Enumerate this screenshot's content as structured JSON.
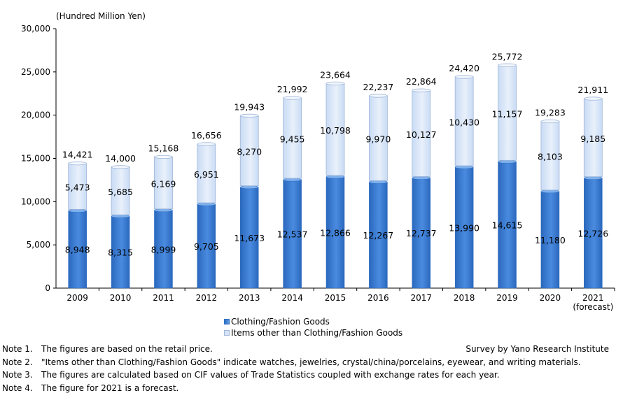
{
  "chart_data": {
    "type": "bar",
    "stacked": true,
    "unit_label": "(Hundred Million Yen)",
    "categories": [
      "2009",
      "2010",
      "2011",
      "2012",
      "2013",
      "2014",
      "2015",
      "2016",
      "2017",
      "2018",
      "2019",
      "2020",
      "2021"
    ],
    "category_sublabels": [
      "",
      "",
      "",
      "",
      "",
      "",
      "",
      "",
      "",
      "",
      "",
      "",
      "(forecast)"
    ],
    "series": [
      {
        "name": "Clothing/Fashion Goods",
        "values": [
          8948,
          8315,
          8999,
          9705,
          11673,
          12537,
          12866,
          12267,
          12737,
          13990,
          14615,
          11180,
          12726
        ]
      },
      {
        "name": "Items other than Clothing/Fashion Goods",
        "values": [
          5473,
          5685,
          6169,
          6951,
          8270,
          9455,
          10798,
          9970,
          10127,
          10430,
          11157,
          8103,
          9185
        ]
      }
    ],
    "totals": [
      14421,
      14000,
      15168,
      16656,
      19943,
      21992,
      23664,
      22237,
      22864,
      24420,
      25772,
      19283,
      21911
    ],
    "ylim": [
      0,
      30000
    ],
    "yticks": [
      "0",
      "5,000",
      "10,000",
      "15,000",
      "20,000",
      "25,000",
      "30,000"
    ],
    "colors": {
      "clothing": "#3d7fd3",
      "other": "#d6e4f7",
      "border": "#9fb6d8"
    }
  },
  "legend": {
    "clothing": "Clothing/Fashion Goods",
    "other": "Items other than Clothing/Fashion Goods"
  },
  "notes": [
    {
      "num": "Note 1.",
      "text": "The figures are based on the retail price."
    },
    {
      "num": "Note 2.",
      "text": "\"Items other than Clothing/Fashion Goods\" indicate watches, jewelries, crystal/china/porcelains, eyewear, and writing materials."
    },
    {
      "num": "Note 3.",
      "text": "The figures are calculated based on CIF values of Trade Statistics coupled with exchange rates for each year."
    },
    {
      "num": "Note 4.",
      "text": "The figure for 2021 is a forecast."
    }
  ],
  "source": "Survey by Yano Research Institute"
}
